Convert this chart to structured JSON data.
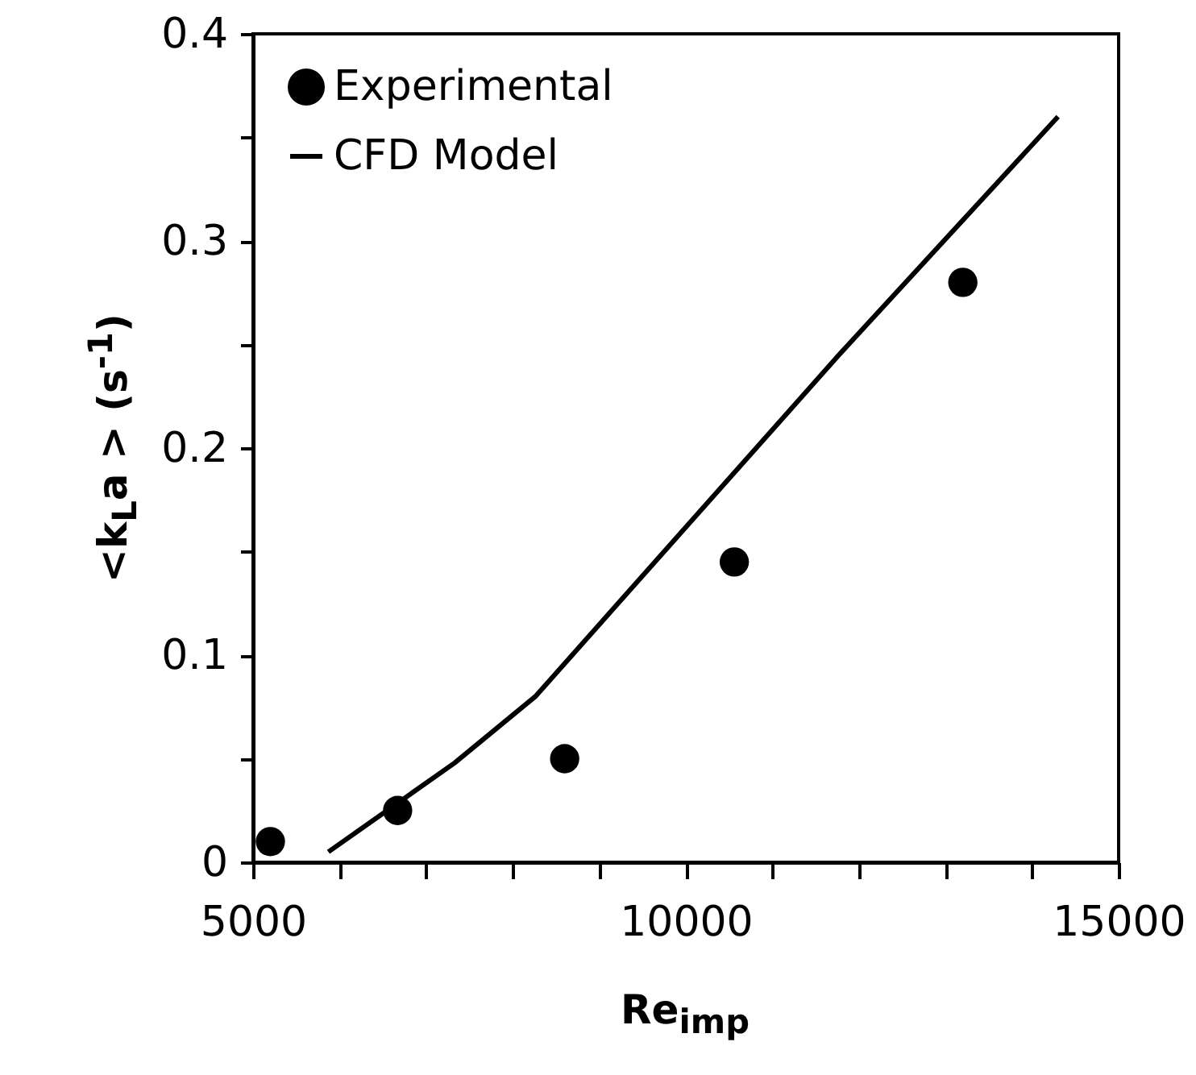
{
  "chart_data": {
    "type": "scatter",
    "xlabel": "Re$_{imp}$",
    "ylabel": "<k$_{L}$a > (s$^{-1}$)",
    "xlim": [
      5000,
      15000
    ],
    "xticks": [
      5000,
      {
        "value": 6000,
        "label": null
      },
      {
        "value": 7000,
        "label": null
      },
      {
        "value": 8000,
        "label": null
      },
      {
        "value": 9000,
        "label": null
      },
      10000,
      {
        "value": 11000,
        "label": null
      },
      {
        "value": 12000,
        "label": null
      },
      {
        "value": 13000,
        "label": null
      },
      {
        "value": 14000,
        "label": null
      },
      15000
    ],
    "ylim": [
      0,
      0.4
    ],
    "yticks": [
      0,
      {
        "value": 0.05,
        "label": null
      },
      0.1,
      {
        "value": 0.15,
        "label": null
      },
      0.2,
      {
        "value": 0.25,
        "label": null
      },
      0.3,
      {
        "value": 0.35,
        "label": null
      },
      0.4
    ],
    "grid": false,
    "legend": "top left",
    "series": [
      {
        "name": "Experimental",
        "marker": "circle",
        "color": "#000000",
        "x": [
          5200,
          6670,
          8600,
          10560,
          13200
        ],
        "values": [
          0.01,
          0.025,
          0.05,
          0.145,
          0.28
        ]
      },
      {
        "name": "CFD Model",
        "type": "line",
        "marker": "none",
        "line_style": "solid",
        "color": "#000000",
        "x": [
          5870,
          7330,
          8260,
          11770,
          14300
        ],
        "values": [
          0.005,
          0.048,
          0.08,
          0.245,
          0.36
        ]
      }
    ]
  }
}
